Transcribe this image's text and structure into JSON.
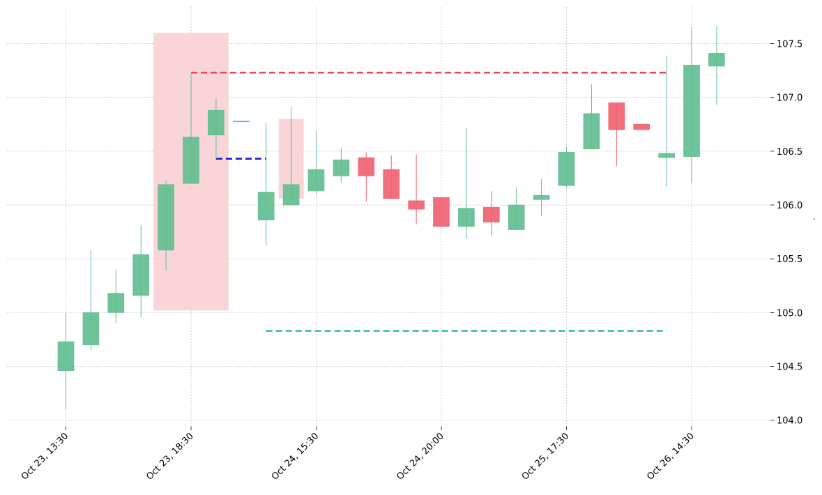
{
  "chart_data": {
    "type": "candlestick",
    "title": "",
    "xlabel": "",
    "ylabel": "",
    "ylim": [
      103.94,
      107.84
    ],
    "yticks": [
      104.0,
      104.5,
      105.0,
      105.5,
      106.0,
      106.5,
      107.0,
      107.5
    ],
    "ytick_labels": [
      "104.0",
      "104.5",
      "105.0",
      "105.5",
      "106.0",
      "106.5",
      "107.0",
      "107.5"
    ],
    "y_axis_position": "right",
    "grid": true,
    "xticks": [
      {
        "index": 0,
        "label": "Oct 23, 13:30"
      },
      {
        "index": 5,
        "label": "Oct 23, 18:30"
      },
      {
        "index": 10,
        "label": "Oct 24, 15:30"
      },
      {
        "index": 15,
        "label": "Oct 24, 20:00"
      },
      {
        "index": 20,
        "label": "Oct 25, 17:30"
      },
      {
        "index": 25,
        "label": "Oct 26, 14:30"
      }
    ],
    "candles": [
      {
        "open": 104.46,
        "high": 105.0,
        "low": 104.1,
        "close": 104.73
      },
      {
        "open": 104.7,
        "high": 105.58,
        "low": 104.65,
        "close": 105.0
      },
      {
        "open": 105.0,
        "high": 105.4,
        "low": 104.9,
        "close": 105.18
      },
      {
        "open": 105.16,
        "high": 105.81,
        "low": 104.96,
        "close": 105.54
      },
      {
        "open": 105.58,
        "high": 106.23,
        "low": 105.39,
        "close": 106.19
      },
      {
        "open": 106.2,
        "high": 107.22,
        "low": 106.2,
        "close": 106.63
      },
      {
        "open": 106.65,
        "high": 106.99,
        "low": 106.43,
        "close": 106.88
      },
      {
        "open": 106.78,
        "high": 106.78,
        "low": 106.78,
        "close": 106.78
      },
      {
        "open": 105.86,
        "high": 106.76,
        "low": 105.62,
        "close": 106.12
      },
      {
        "open": 106.0,
        "high": 106.91,
        "low": 106.0,
        "close": 106.19
      },
      {
        "open": 106.13,
        "high": 106.69,
        "low": 106.09,
        "close": 106.33
      },
      {
        "open": 106.27,
        "high": 106.53,
        "low": 106.21,
        "close": 106.42
      },
      {
        "open": 106.44,
        "high": 106.49,
        "low": 106.03,
        "close": 106.27
      },
      {
        "open": 106.33,
        "high": 106.46,
        "low": 106.06,
        "close": 106.06
      },
      {
        "open": 106.04,
        "high": 106.47,
        "low": 105.82,
        "close": 105.96
      },
      {
        "open": 106.07,
        "high": 106.07,
        "low": 105.8,
        "close": 105.8
      },
      {
        "open": 105.8,
        "high": 106.71,
        "low": 105.69,
        "close": 105.97
      },
      {
        "open": 105.98,
        "high": 106.13,
        "low": 105.72,
        "close": 105.84
      },
      {
        "open": 105.77,
        "high": 106.17,
        "low": 105.77,
        "close": 106.0
      },
      {
        "open": 106.05,
        "high": 106.24,
        "low": 105.9,
        "close": 106.09
      },
      {
        "open": 106.18,
        "high": 106.54,
        "low": 106.16,
        "close": 106.49
      },
      {
        "open": 106.52,
        "high": 107.12,
        "low": 106.52,
        "close": 106.85
      },
      {
        "open": 106.95,
        "high": 106.95,
        "low": 106.36,
        "close": 106.7
      },
      {
        "open": 106.75,
        "high": 106.75,
        "low": 106.7,
        "close": 106.7
      },
      {
        "open": 106.44,
        "high": 107.39,
        "low": 106.17,
        "close": 106.48
      },
      {
        "open": 106.45,
        "high": 107.65,
        "low": 106.21,
        "close": 107.3
      },
      {
        "open": 107.29,
        "high": 107.66,
        "low": 106.93,
        "close": 107.41
      }
    ],
    "highlight_zones": [
      {
        "x_from": 3.5,
        "x_to": 6.5,
        "y_from": 105.02,
        "y_to": 107.6,
        "color": "#f9d3d8"
      },
      {
        "x_from": 8.5,
        "x_to": 9.5,
        "y_from": 106.06,
        "y_to": 106.8,
        "color": "#f9d3d8"
      }
    ],
    "levels": [
      {
        "x_from": 5,
        "x_to": 24,
        "y": 107.23,
        "color": "#e8475f",
        "style": "dashed"
      },
      {
        "x_from": 6,
        "x_to": 8,
        "y": 106.43,
        "color": "#1a1ad6",
        "style": "dashed"
      },
      {
        "x_from": 8,
        "x_to": 24,
        "y": 104.83,
        "color": "#2fc08e",
        "style": "dashed"
      }
    ],
    "colors": {
      "up": "#5fbd8f",
      "down": "#ef5f6f",
      "grid": "#b0b0b0"
    }
  }
}
